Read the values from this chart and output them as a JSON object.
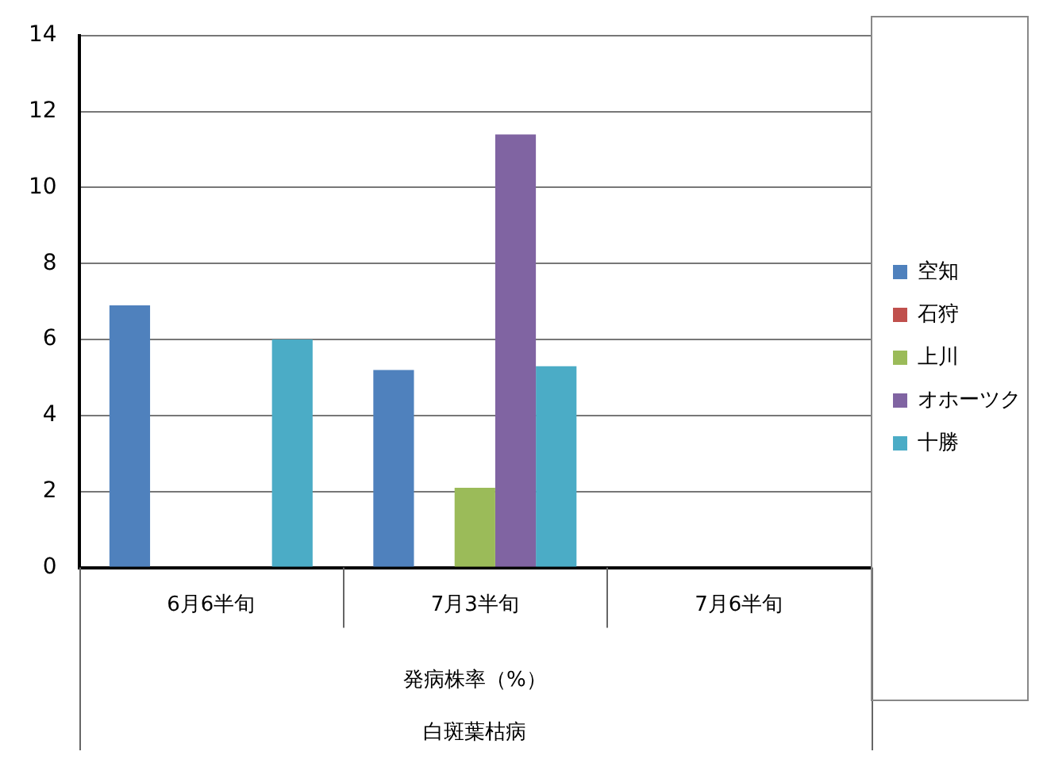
{
  "chart_data": {
    "type": "bar",
    "xlabel": "発病株率（%）",
    "annotations": [
      "白斑葉枯病"
    ],
    "categories": [
      "6月6半旬",
      "7月3半旬",
      "7月6半旬"
    ],
    "series": [
      {
        "name": "空知",
        "color": "#4f81bd",
        "values": [
          6.9,
          5.2,
          null
        ]
      },
      {
        "name": "石狩",
        "color": "#c0504d",
        "values": [
          null,
          null,
          null
        ]
      },
      {
        "name": "上川",
        "color": "#9bbb59",
        "values": [
          null,
          2.1,
          null
        ]
      },
      {
        "name": "オホーツク",
        "color": "#8064a2",
        "values": [
          null,
          11.4,
          null
        ]
      },
      {
        "name": "十勝",
        "color": "#4bacc6",
        "values": [
          6.0,
          5.3,
          null
        ]
      }
    ],
    "ylim": [
      0,
      14
    ],
    "yticks": [
      0,
      2,
      4,
      6,
      8,
      10,
      12,
      14
    ],
    "grid": "y",
    "legend": "right"
  }
}
